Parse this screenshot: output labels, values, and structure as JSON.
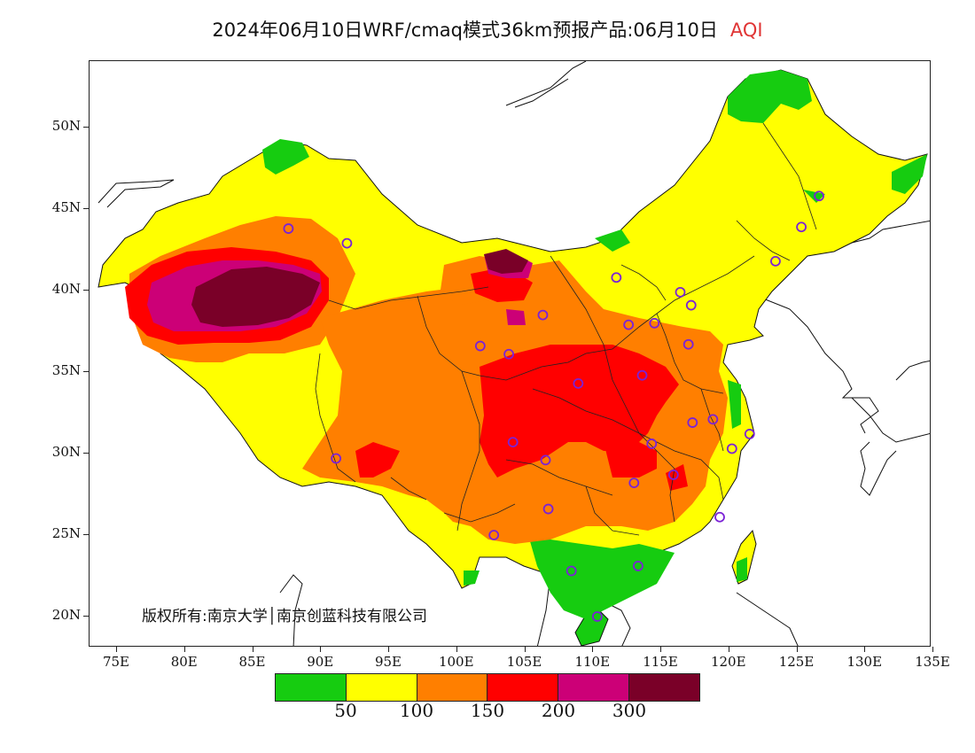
{
  "title": {
    "main": "2024年06月10日WRF/cmaq模式36km预报产品:06月10日",
    "variable": "AQI"
  },
  "axes": {
    "y_labels": [
      "50N",
      "45N",
      "40N",
      "35N",
      "30N",
      "25N",
      "20N"
    ],
    "x_labels": [
      "75E",
      "80E",
      "85E",
      "90E",
      "95E",
      "100E",
      "105E",
      "110E",
      "115E",
      "120E",
      "125E",
      "130E",
      "135E"
    ]
  },
  "legend": {
    "colors": [
      "#16cc10",
      "#ffff00",
      "#ff7f00",
      "#ff0000",
      "#cc0077",
      "#7a0028"
    ],
    "ticks": [
      "50",
      "100",
      "150",
      "200",
      "300"
    ]
  },
  "copyright": "版权所有:南京大学│南京创蓝科技有限公司",
  "map_regions": {
    "good": "#16cc10",
    "moderate": "#ffff00",
    "unhealthy_sensitive": "#ff7f00",
    "unhealthy": "#ff0000",
    "very_unhealthy": "#cc0077",
    "hazardous": "#7a0028"
  },
  "stations": [
    {
      "lon": 87.6,
      "lat": 43.8
    },
    {
      "lon": 91.1,
      "lat": 29.7
    },
    {
      "lon": 101.7,
      "lat": 36.6
    },
    {
      "lon": 103.8,
      "lat": 36.1
    },
    {
      "lon": 106.3,
      "lat": 38.5
    },
    {
      "lon": 111.7,
      "lat": 40.8
    },
    {
      "lon": 112.6,
      "lat": 37.9
    },
    {
      "lon": 114.5,
      "lat": 38.0
    },
    {
      "lon": 116.4,
      "lat": 39.9
    },
    {
      "lon": 117.2,
      "lat": 39.1
    },
    {
      "lon": 117.0,
      "lat": 36.7
    },
    {
      "lon": 113.6,
      "lat": 34.8
    },
    {
      "lon": 108.9,
      "lat": 34.3
    },
    {
      "lon": 104.1,
      "lat": 30.7
    },
    {
      "lon": 106.5,
      "lat": 29.6
    },
    {
      "lon": 106.7,
      "lat": 26.6
    },
    {
      "lon": 102.7,
      "lat": 25.0
    },
    {
      "lon": 108.4,
      "lat": 22.8
    },
    {
      "lon": 113.3,
      "lat": 23.1
    },
    {
      "lon": 110.3,
      "lat": 20.0
    },
    {
      "lon": 114.3,
      "lat": 30.6
    },
    {
      "lon": 113.0,
      "lat": 28.2
    },
    {
      "lon": 115.9,
      "lat": 28.7
    },
    {
      "lon": 117.3,
      "lat": 31.9
    },
    {
      "lon": 118.8,
      "lat": 32.1
    },
    {
      "lon": 120.2,
      "lat": 30.3
    },
    {
      "lon": 121.5,
      "lat": 31.2
    },
    {
      "lon": 119.3,
      "lat": 26.1
    },
    {
      "lon": 123.4,
      "lat": 41.8
    },
    {
      "lon": 125.3,
      "lat": 43.9
    },
    {
      "lon": 126.6,
      "lat": 45.8
    },
    {
      "lon": 91.9,
      "lat": 42.9
    }
  ]
}
